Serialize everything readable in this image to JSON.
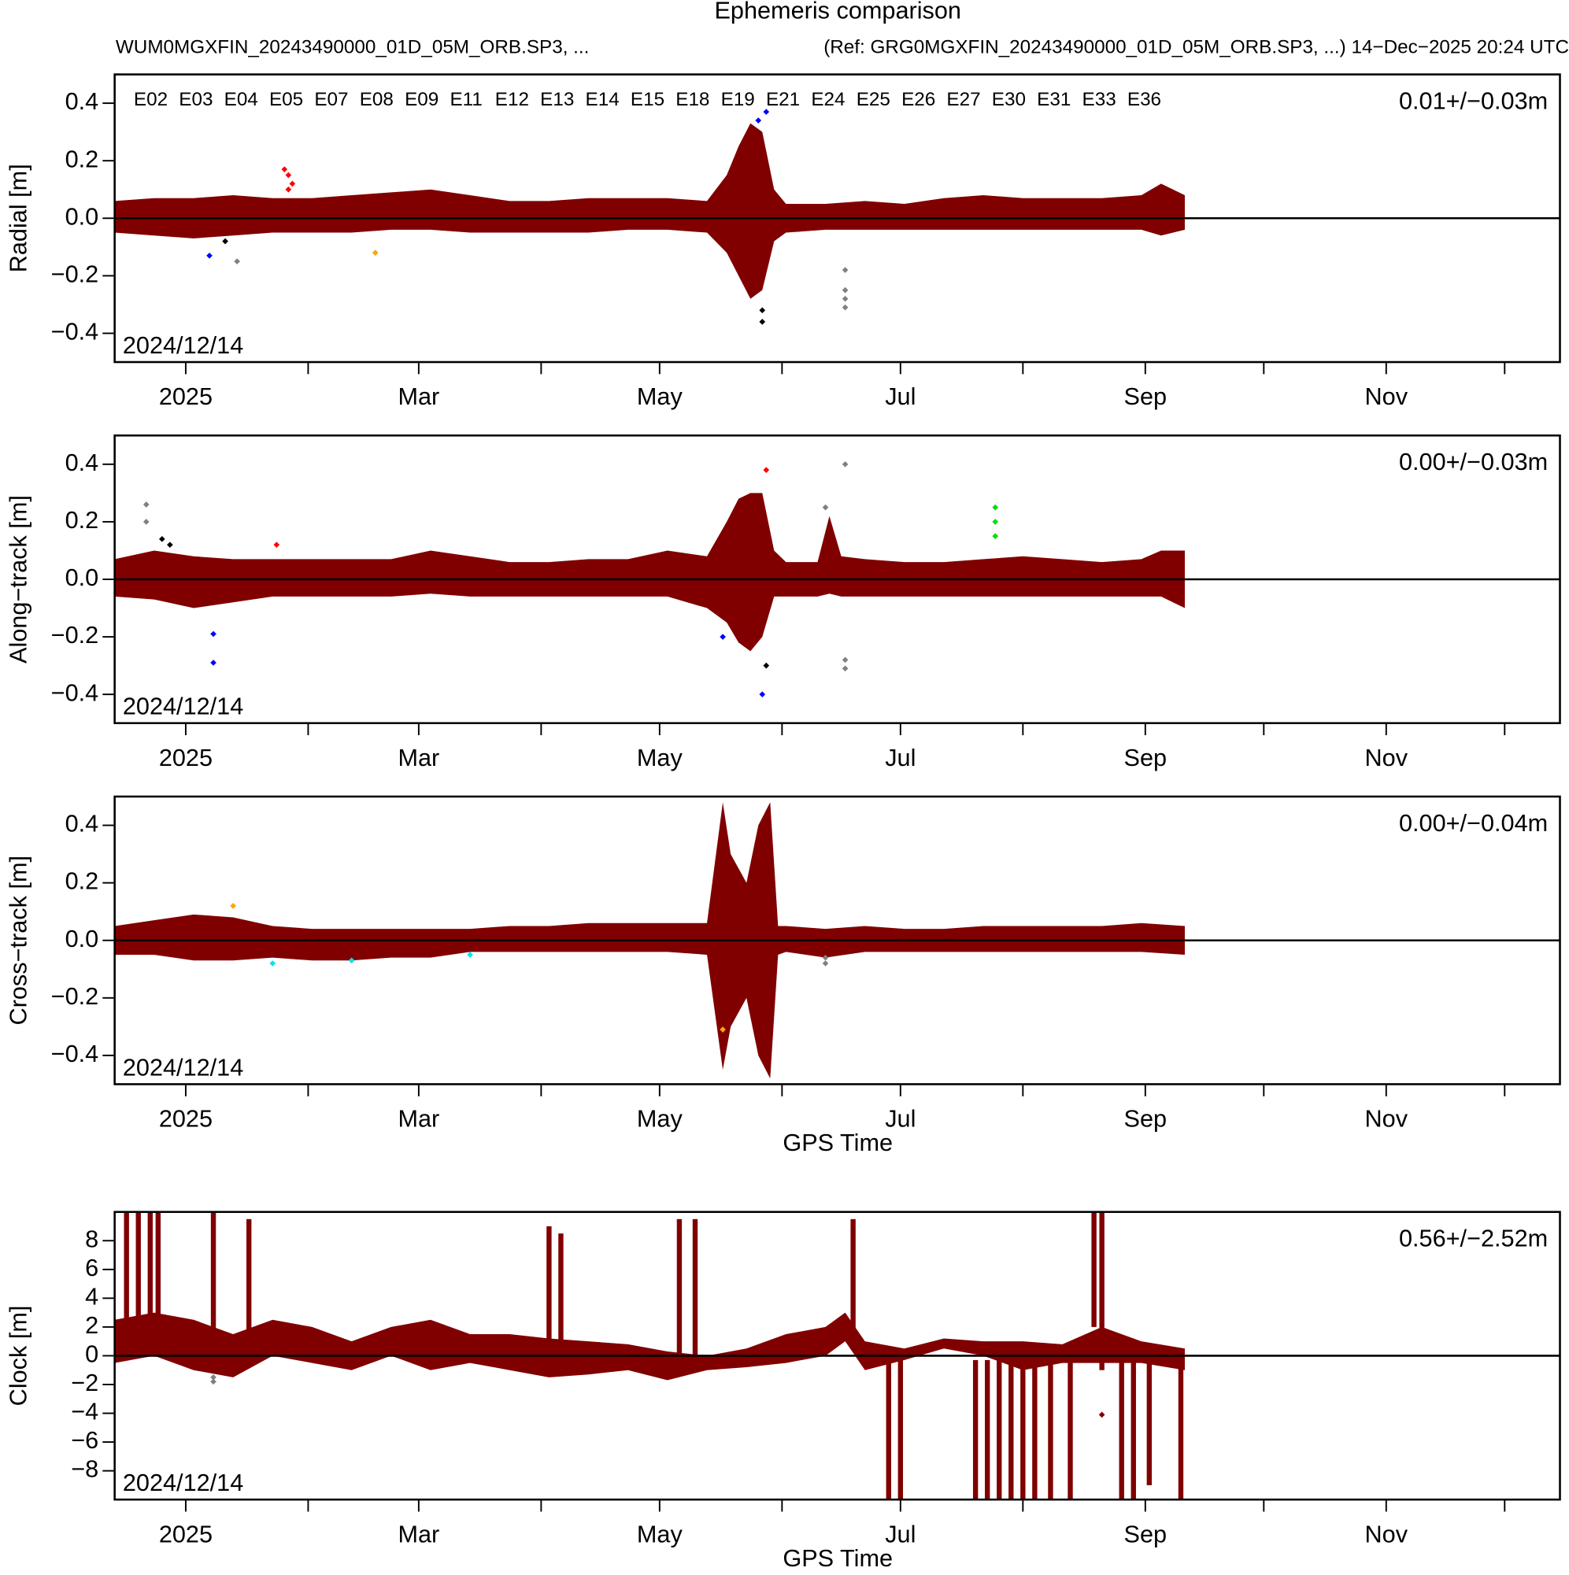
{
  "chart_data": [
    {
      "type": "scatter",
      "title": "Ephemeris comparison",
      "subtitle_left": "WUM0MGXFIN_20243490000_01D_05M_ORB.SP3, ...",
      "subtitle_right": "(Ref: GRG0MGXFIN_20243490000_01D_05M_ORB.SP3, ...) 14−Dec−2025 20:24 UTC",
      "ylabel": "Radial [m]",
      "stats": "0.01+/−0.03m",
      "start_label": "2024/12/14",
      "legend": [
        {
          "name": "E02",
          "color": "#ff0000"
        },
        {
          "name": "E03",
          "color": "#0000ff"
        },
        {
          "name": "E04",
          "color": "#00e000"
        },
        {
          "name": "E05",
          "color": "#00008b"
        },
        {
          "name": "E07",
          "color": "#008000"
        },
        {
          "name": "E08",
          "color": "#00e5ee"
        },
        {
          "name": "E09",
          "color": "#ff00ff"
        },
        {
          "name": "E11",
          "color": "#c8c8c8"
        },
        {
          "name": "E12",
          "color": "#8b0000"
        },
        {
          "name": "E13",
          "color": "#ffa500"
        },
        {
          "name": "E14",
          "color": "#808080"
        },
        {
          "name": "E15",
          "color": "#808000"
        },
        {
          "name": "E18",
          "color": "#000000"
        },
        {
          "name": "E19",
          "color": "#ff0000"
        },
        {
          "name": "E21",
          "color": "#0000ff"
        },
        {
          "name": "E24",
          "color": "#00e000"
        },
        {
          "name": "E25",
          "color": "#00008b"
        },
        {
          "name": "E26",
          "color": "#800080"
        },
        {
          "name": "E27",
          "color": "#008000"
        },
        {
          "name": "E30",
          "color": "#00e5ee"
        },
        {
          "name": "E31",
          "color": "#ff00ff"
        },
        {
          "name": "E33",
          "color": "#c8c8c8"
        },
        {
          "name": "E36",
          "color": "#800000"
        }
      ],
      "xlim": [
        0,
        366
      ],
      "xticks": [
        {
          "value": 18,
          "label": "2025"
        },
        {
          "value": 77,
          "label": "Mar"
        },
        {
          "value": 138,
          "label": "May"
        },
        {
          "value": 199,
          "label": "Jul"
        },
        {
          "value": 261,
          "label": "Sep"
        },
        {
          "value": 322,
          "label": "Nov"
        }
      ],
      "xminorticks": [
        49,
        108,
        169,
        230,
        291,
        352
      ],
      "ylim": [
        -0.5,
        0.5
      ],
      "yticks": [
        {
          "value": -0.4,
          "label": "−0.4"
        },
        {
          "value": -0.2,
          "label": "−0.2"
        },
        {
          "value": 0,
          "label": "0.0"
        },
        0.2,
        0.4
      ],
      "reference_line": 0,
      "band": {
        "color": "#800000",
        "x": [
          0,
          10,
          20,
          30,
          40,
          50,
          60,
          70,
          80,
          90,
          100,
          110,
          120,
          130,
          140,
          150,
          155,
          158,
          161,
          164,
          167,
          170,
          180,
          190,
          200,
          210,
          220,
          230,
          240,
          250,
          260,
          265,
          271
        ],
        "upper": [
          0.06,
          0.07,
          0.07,
          0.08,
          0.07,
          0.07,
          0.08,
          0.09,
          0.1,
          0.08,
          0.06,
          0.06,
          0.07,
          0.07,
          0.07,
          0.06,
          0.15,
          0.25,
          0.33,
          0.3,
          0.1,
          0.05,
          0.05,
          0.06,
          0.05,
          0.07,
          0.08,
          0.07,
          0.07,
          0.07,
          0.08,
          0.12,
          0.08
        ],
        "lower": [
          -0.05,
          -0.06,
          -0.07,
          -0.06,
          -0.05,
          -0.05,
          -0.05,
          -0.04,
          -0.04,
          -0.05,
          -0.05,
          -0.05,
          -0.05,
          -0.04,
          -0.04,
          -0.05,
          -0.12,
          -0.2,
          -0.28,
          -0.25,
          -0.08,
          -0.05,
          -0.04,
          -0.04,
          -0.04,
          -0.04,
          -0.04,
          -0.04,
          -0.04,
          -0.04,
          -0.04,
          -0.06,
          -0.04
        ]
      },
      "series": [
        {
          "color": "#ff0000",
          "x": [
            43,
            44,
            45,
            44
          ],
          "values": [
            0.17,
            0.15,
            0.12,
            0.1
          ]
        },
        {
          "color": "#0000ff",
          "x": [
            24,
            163,
            165
          ],
          "values": [
            -0.13,
            0.34,
            0.37
          ]
        },
        {
          "color": "#808080",
          "x": [
            31,
            185,
            185,
            185,
            185
          ],
          "values": [
            -0.15,
            -0.31,
            -0.28,
            -0.25,
            -0.18
          ]
        },
        {
          "color": "#000000",
          "x": [
            28,
            164,
            164
          ],
          "values": [
            -0.08,
            -0.36,
            -0.32
          ]
        },
        {
          "color": "#ffa500",
          "x": [
            66
          ],
          "values": [
            -0.12
          ]
        }
      ]
    },
    {
      "type": "scatter",
      "ylabel": "Along−track [m]",
      "stats": "0.00+/−0.03m",
      "start_label": "2024/12/14",
      "xlim": [
        0,
        366
      ],
      "xticks": [
        {
          "value": 18,
          "label": "2025"
        },
        {
          "value": 77,
          "label": "Mar"
        },
        {
          "value": 138,
          "label": "May"
        },
        {
          "value": 199,
          "label": "Jul"
        },
        {
          "value": 261,
          "label": "Sep"
        },
        {
          "value": 322,
          "label": "Nov"
        }
      ],
      "xminorticks": [
        49,
        108,
        169,
        230,
        291,
        352
      ],
      "ylim": [
        -0.5,
        0.5
      ],
      "yticks": [
        {
          "value": -0.4,
          "label": "−0.4"
        },
        {
          "value": -0.2,
          "label": "−0.2"
        },
        {
          "value": 0,
          "label": "0.0"
        },
        0.2,
        0.4
      ],
      "reference_line": 0,
      "band": {
        "color": "#800000",
        "x": [
          0,
          10,
          20,
          30,
          40,
          50,
          60,
          70,
          80,
          90,
          100,
          110,
          120,
          130,
          140,
          150,
          155,
          158,
          161,
          164,
          167,
          170,
          178,
          181,
          184,
          190,
          200,
          210,
          220,
          230,
          240,
          250,
          260,
          265,
          271
        ],
        "upper": [
          0.07,
          0.1,
          0.08,
          0.07,
          0.07,
          0.07,
          0.07,
          0.07,
          0.1,
          0.08,
          0.06,
          0.06,
          0.07,
          0.07,
          0.1,
          0.08,
          0.2,
          0.28,
          0.3,
          0.3,
          0.1,
          0.06,
          0.06,
          0.22,
          0.08,
          0.07,
          0.06,
          0.06,
          0.07,
          0.08,
          0.07,
          0.06,
          0.07,
          0.1,
          0.1
        ],
        "lower": [
          -0.06,
          -0.07,
          -0.1,
          -0.08,
          -0.06,
          -0.06,
          -0.06,
          -0.06,
          -0.05,
          -0.06,
          -0.06,
          -0.06,
          -0.06,
          -0.06,
          -0.06,
          -0.1,
          -0.15,
          -0.22,
          -0.25,
          -0.2,
          -0.06,
          -0.06,
          -0.06,
          -0.05,
          -0.06,
          -0.06,
          -0.06,
          -0.06,
          -0.06,
          -0.06,
          -0.06,
          -0.06,
          -0.06,
          -0.06,
          -0.1
        ]
      },
      "series": [
        {
          "color": "#808080",
          "x": [
            8,
            8,
            185,
            185,
            185,
            180
          ],
          "values": [
            0.26,
            0.2,
            0.4,
            -0.31,
            -0.28,
            0.25
          ]
        },
        {
          "color": "#0000ff",
          "x": [
            25,
            25,
            164,
            154
          ],
          "values": [
            -0.29,
            -0.19,
            -0.4,
            -0.2
          ]
        },
        {
          "color": "#ff0000",
          "x": [
            165,
            41
          ],
          "values": [
            0.38,
            0.12
          ]
        },
        {
          "color": "#00e000",
          "x": [
            223,
            223,
            223
          ],
          "values": [
            0.25,
            0.2,
            0.15
          ]
        },
        {
          "color": "#000000",
          "x": [
            12,
            14,
            165
          ],
          "values": [
            0.14,
            0.12,
            -0.3
          ]
        }
      ]
    },
    {
      "type": "scatter",
      "ylabel": "Cross−track [m]",
      "stats": "0.00+/−0.04m",
      "start_label": "2024/12/14",
      "xlabel": "GPS Time",
      "xlim": [
        0,
        366
      ],
      "xticks": [
        {
          "value": 18,
          "label": "2025"
        },
        {
          "value": 77,
          "label": "Mar"
        },
        {
          "value": 138,
          "label": "May"
        },
        {
          "value": 199,
          "label": "Jul"
        },
        {
          "value": 261,
          "label": "Sep"
        },
        {
          "value": 322,
          "label": "Nov"
        }
      ],
      "xminorticks": [
        49,
        108,
        169,
        230,
        291,
        352
      ],
      "ylim": [
        -0.5,
        0.5
      ],
      "yticks": [
        {
          "value": -0.4,
          "label": "−0.4"
        },
        {
          "value": -0.2,
          "label": "−0.2"
        },
        {
          "value": 0,
          "label": "0.0"
        },
        0.2,
        0.4
      ],
      "reference_line": 0,
      "band": {
        "color": "#800000",
        "x": [
          0,
          10,
          20,
          30,
          40,
          50,
          60,
          70,
          80,
          90,
          100,
          110,
          120,
          130,
          140,
          150,
          154,
          156,
          160,
          163,
          166,
          168,
          170,
          180,
          190,
          200,
          210,
          220,
          230,
          240,
          250,
          260,
          271
        ],
        "upper": [
          0.05,
          0.07,
          0.09,
          0.08,
          0.05,
          0.04,
          0.04,
          0.04,
          0.04,
          0.04,
          0.05,
          0.05,
          0.06,
          0.06,
          0.06,
          0.06,
          0.48,
          0.3,
          0.2,
          0.4,
          0.48,
          0.05,
          0.05,
          0.04,
          0.05,
          0.04,
          0.04,
          0.05,
          0.05,
          0.05,
          0.05,
          0.06,
          0.05
        ],
        "lower": [
          -0.05,
          -0.05,
          -0.07,
          -0.07,
          -0.06,
          -0.07,
          -0.07,
          -0.06,
          -0.06,
          -0.04,
          -0.04,
          -0.04,
          -0.04,
          -0.04,
          -0.04,
          -0.05,
          -0.45,
          -0.3,
          -0.2,
          -0.4,
          -0.48,
          -0.05,
          -0.04,
          -0.06,
          -0.04,
          -0.04,
          -0.04,
          -0.04,
          -0.04,
          -0.04,
          -0.04,
          -0.04,
          -0.05
        ]
      },
      "series": [
        {
          "color": "#808080",
          "x": [
            180,
            180
          ],
          "values": [
            -0.08,
            -0.06
          ]
        },
        {
          "color": "#00e5ee",
          "x": [
            40,
            60,
            90
          ],
          "values": [
            -0.08,
            -0.07,
            -0.05
          ]
        },
        {
          "color": "#ffa500",
          "x": [
            154,
            30
          ],
          "values": [
            -0.31,
            0.12
          ]
        }
      ]
    },
    {
      "type": "scatter",
      "ylabel": "Clock [m]",
      "stats": "0.56+/−2.52m",
      "start_label": "2024/12/14",
      "xlabel": "GPS Time",
      "xlim": [
        0,
        366
      ],
      "xticks": [
        {
          "value": 18,
          "label": "2025"
        },
        {
          "value": 77,
          "label": "Mar"
        },
        {
          "value": 138,
          "label": "May"
        },
        {
          "value": 199,
          "label": "Jul"
        },
        {
          "value": 261,
          "label": "Sep"
        },
        {
          "value": 322,
          "label": "Nov"
        }
      ],
      "xminorticks": [
        49,
        108,
        169,
        230,
        291,
        352
      ],
      "ylim": [
        -10,
        10
      ],
      "yticks": [
        {
          "value": -8,
          "label": "−8"
        },
        {
          "value": -6,
          "label": "−6"
        },
        {
          "value": -4,
          "label": "−4"
        },
        {
          "value": -2,
          "label": "−2"
        },
        0,
        2,
        4,
        6,
        8
      ],
      "reference_line": 0,
      "band": {
        "color": "#800000",
        "x": [
          0,
          10,
          20,
          30,
          40,
          50,
          60,
          70,
          80,
          90,
          100,
          110,
          120,
          130,
          140,
          150,
          160,
          170,
          180,
          185,
          190,
          200,
          210,
          220,
          230,
          240,
          250,
          260,
          271
        ],
        "upper": [
          2.5,
          3,
          2.5,
          1.5,
          2.5,
          2,
          1,
          2,
          2.5,
          1.5,
          1.5,
          1.2,
          1,
          0.8,
          0.3,
          0,
          0.5,
          1.5,
          2,
          3,
          1,
          0.5,
          1.2,
          1,
          1,
          0.8,
          2,
          1,
          0.5
        ],
        "lower": [
          -0.5,
          0,
          -1,
          -1.5,
          0,
          -0.5,
          -1,
          0,
          -1,
          -0.5,
          -1,
          -1.5,
          -1.3,
          -1,
          -1.7,
          -1,
          -0.8,
          -0.5,
          0,
          1,
          -1,
          -0.3,
          0.5,
          0,
          -1,
          -0.5,
          -0.5,
          -0.5,
          -1
        ]
      },
      "stripes": {
        "color": "#800000",
        "x": [
          3,
          6,
          9,
          11,
          25,
          34,
          110,
          113,
          143,
          147,
          187,
          196,
          199,
          218,
          221,
          224,
          227,
          230,
          233,
          237,
          242,
          248,
          250,
          255,
          258,
          262,
          270
        ],
        "upper": [
          10,
          10,
          10,
          10,
          10,
          9.5,
          9,
          8.5,
          9.5,
          9.5,
          9.5,
          0,
          0,
          -0.3,
          -0.3,
          -0.3,
          -0.3,
          -0.3,
          -0.3,
          -0.3,
          -0.3,
          10,
          10,
          1,
          0.5,
          0,
          0.5
        ],
        "lower": [
          0,
          0,
          0,
          0,
          -1,
          0,
          0,
          0,
          -0.5,
          -0.5,
          1,
          -10,
          -10,
          -10,
          -10,
          -10,
          -10,
          -10,
          -10,
          -10,
          -10,
          2,
          -1,
          -10,
          -10,
          -9,
          -10
        ]
      },
      "series": [
        {
          "color": "#808080",
          "x": [
            25,
            25
          ],
          "values": [
            -1.8,
            -1.5
          ]
        },
        {
          "color": "#800000",
          "x": [
            250
          ],
          "values": [
            -4.1
          ]
        }
      ]
    }
  ]
}
